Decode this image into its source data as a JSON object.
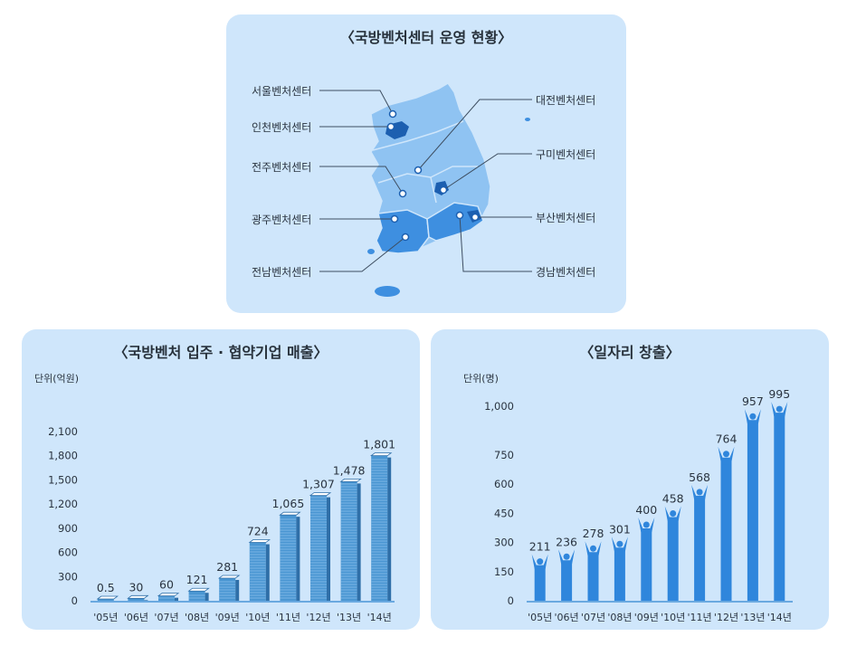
{
  "map_panel": {
    "title": "〈국방벤처센터 운영 현황〉",
    "centers": {
      "seoul": "서울벤처센터",
      "incheon": "인천벤처센터",
      "jeonju": "전주벤처센터",
      "gwangju": "광주벤처센터",
      "jeonnam": "전남벤처센터",
      "daejeon": "대전벤처센터",
      "gumi": "구미벤처센터",
      "busan": "부산벤처센터",
      "gyeongnam": "경남벤처센터"
    }
  },
  "chart_data": [
    {
      "type": "bar",
      "title": "〈국방벤처 입주 · 협약기업 매출〉",
      "unit_label": "단위(억원)",
      "categories": [
        "'05년",
        "'06년",
        "'07년",
        "'08년",
        "'09년",
        "'10년",
        "'11년",
        "'12년",
        "'13년",
        "'14년"
      ],
      "values": [
        0.5,
        30,
        60,
        121,
        281,
        724,
        1065,
        1307,
        1478,
        1801
      ],
      "value_labels": [
        "0.5",
        "30",
        "60",
        "121",
        "281",
        "724",
        "1,065",
        "1,307",
        "1,478",
        "1,801"
      ],
      "yticks": [
        0,
        300,
        600,
        900,
        1200,
        1500,
        1800,
        2100
      ],
      "ytick_labels": [
        "0",
        "300",
        "600",
        "900",
        "1,200",
        "1,500",
        "1,800",
        "2,100"
      ],
      "ylim": [
        0,
        2100
      ],
      "color": "#3f8fcf"
    },
    {
      "type": "bar",
      "title": "〈일자리 창출〉",
      "unit_label": "단위(명)",
      "categories": [
        "'05년",
        "'06년",
        "'07년",
        "'08년",
        "'09년",
        "'10년",
        "'11년",
        "'12년",
        "'13년",
        "'14년"
      ],
      "values": [
        211,
        236,
        278,
        301,
        400,
        458,
        568,
        764,
        957,
        995
      ],
      "value_labels": [
        "211",
        "236",
        "278",
        "301",
        "400",
        "458",
        "568",
        "764",
        "957",
        "995"
      ],
      "yticks": [
        0,
        150,
        300,
        450,
        600,
        750,
        1000
      ],
      "ytick_labels": [
        "0",
        "150",
        "300",
        "450",
        "600",
        "750",
        "1,000"
      ],
      "ylim": [
        0,
        1000
      ],
      "color": "#2f86dc"
    }
  ]
}
